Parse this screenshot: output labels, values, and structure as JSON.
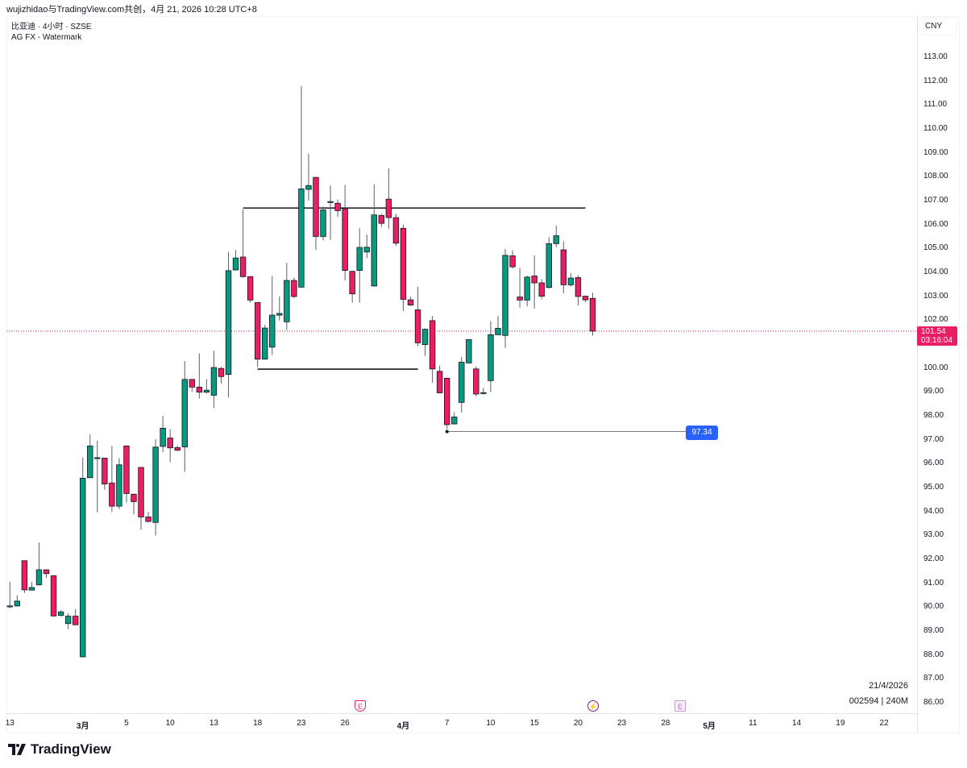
{
  "caption": "wujizhidao与TradingView.com共创，4月 21, 2026 10:28 UTC+8",
  "legend": {
    "symbol_line": "比亚迪 · 4小时 · SZSE",
    "indicator_line": "AG FX - Watermark"
  },
  "currency_button": "CNY",
  "last_price": {
    "price": "101.54",
    "countdown": "03:16:04"
  },
  "info": {
    "date": "21/4/2026",
    "symbol_interval": "002594 | 240M"
  },
  "markers": {
    "earnings_past": "E",
    "dividend": "⚡",
    "earnings_future": "E"
  },
  "logo": {
    "text": "TradingView"
  },
  "colors": {
    "up": "#089981",
    "down": "#e91e63",
    "border": "#131722",
    "last_price": "#e91e63",
    "price_line": "#2962ff"
  },
  "chart_data": {
    "type": "candlestick",
    "ylim": [
      86,
      113
    ],
    "grid": false,
    "y_ticks": [
      "113.00",
      "112.00",
      "111.00",
      "110.00",
      "109.00",
      "108.00",
      "107.00",
      "106.00",
      "105.00",
      "104.00",
      "103.00",
      "102.00",
      "100.00",
      "99.00",
      "98.00",
      "97.00",
      "96.00",
      "95.00",
      "94.00",
      "93.00",
      "92.00",
      "91.00",
      "90.00",
      "89.00",
      "88.00",
      "87.00",
      "86.00"
    ],
    "x_ticks": [
      {
        "label": "13",
        "bar": 0
      },
      {
        "label": "3月",
        "bar": 10,
        "bold": true
      },
      {
        "label": "5",
        "bar": 16
      },
      {
        "label": "10",
        "bar": 22
      },
      {
        "label": "13",
        "bar": 28
      },
      {
        "label": "18",
        "bar": 34
      },
      {
        "label": "23",
        "bar": 40
      },
      {
        "label": "26",
        "bar": 46
      },
      {
        "label": "4月",
        "bar": 54,
        "bold": true
      },
      {
        "label": "7",
        "bar": 60
      },
      {
        "label": "10",
        "bar": 66
      },
      {
        "label": "15",
        "bar": 72
      },
      {
        "label": "20",
        "bar": 78
      },
      {
        "label": "23",
        "bar": 84
      },
      {
        "label": "28",
        "bar": 90
      },
      {
        "label": "5月",
        "bar": 96,
        "bold": true
      },
      {
        "label": "11",
        "bar": 102
      },
      {
        "label": "14",
        "bar": 108
      },
      {
        "label": "19",
        "bar": 114
      },
      {
        "label": "22",
        "bar": 120
      }
    ],
    "ohlc": [
      [
        90.02,
        91.06,
        89.95,
        90.05
      ],
      [
        90.05,
        90.5,
        90.02,
        90.25
      ],
      [
        91.94,
        91.95,
        90.59,
        90.72
      ],
      [
        90.71,
        91.05,
        90.7,
        90.82
      ],
      [
        90.93,
        92.7,
        90.9,
        91.56
      ],
      [
        91.56,
        91.58,
        91.23,
        91.4
      ],
      [
        91.31,
        91.33,
        89.6,
        89.63
      ],
      [
        89.65,
        89.88,
        89.62,
        89.8
      ],
      [
        89.31,
        89.74,
        89.08,
        89.62
      ],
      [
        89.62,
        89.91,
        89.25,
        89.26
      ],
      [
        87.92,
        96.26,
        87.89,
        95.39
      ],
      [
        95.41,
        97.22,
        95.4,
        96.74
      ],
      [
        96.23,
        96.96,
        93.96,
        96.25
      ],
      [
        96.23,
        96.25,
        94.91,
        95.15
      ],
      [
        95.19,
        96.74,
        93.97,
        94.22
      ],
      [
        94.22,
        96.23,
        94.1,
        95.95
      ],
      [
        96.74,
        96.76,
        94.37,
        94.75
      ],
      [
        94.72,
        94.75,
        93.87,
        94.41
      ],
      [
        95.84,
        95.86,
        93.24,
        93.77
      ],
      [
        93.77,
        93.98,
        93.54,
        93.58
      ],
      [
        93.54,
        97.02,
        92.99,
        96.69
      ],
      [
        96.72,
        98.0,
        96.48,
        97.48
      ],
      [
        97.07,
        97.45,
        96.06,
        96.66
      ],
      [
        96.67,
        96.75,
        96.52,
        96.56
      ],
      [
        96.7,
        100.29,
        95.66,
        99.52
      ],
      [
        99.52,
        99.54,
        99.0,
        99.2
      ],
      [
        99.2,
        100.61,
        98.73,
        98.99
      ],
      [
        98.99,
        99.53,
        98.93,
        99.07
      ],
      [
        98.86,
        100.72,
        98.32,
        100.02
      ],
      [
        99.98,
        100.05,
        99.35,
        99.64
      ],
      [
        99.73,
        104.85,
        98.78,
        104.07
      ],
      [
        104.1,
        104.94,
        104.07,
        104.6
      ],
      [
        104.64,
        106.63,
        103.78,
        103.82
      ],
      [
        103.82,
        103.85,
        102.73,
        102.84
      ],
      [
        102.74,
        102.76,
        100.04,
        100.37
      ],
      [
        100.37,
        101.8,
        100.35,
        101.67
      ],
      [
        100.87,
        103.85,
        100.54,
        102.21
      ],
      [
        102.21,
        103.0,
        101.98,
        102.28
      ],
      [
        101.93,
        104.4,
        101.59,
        103.66
      ],
      [
        103.66,
        103.78,
        102.92,
        102.99
      ],
      [
        103.38,
        111.79,
        103.36,
        107.49
      ],
      [
        107.47,
        108.97,
        107.0,
        107.63
      ],
      [
        107.97,
        108.0,
        104.93,
        105.5
      ],
      [
        105.5,
        106.75,
        105.34,
        106.61
      ],
      [
        106.94,
        107.63,
        105.36,
        106.96
      ],
      [
        106.89,
        107.05,
        106.31,
        106.58
      ],
      [
        106.66,
        107.66,
        103.66,
        104.08
      ],
      [
        104.04,
        104.08,
        102.73,
        103.1
      ],
      [
        104.08,
        105.85,
        102.73,
        105.04
      ],
      [
        104.85,
        105.58,
        104.59,
        105.05
      ],
      [
        103.43,
        107.68,
        103.4,
        106.4
      ],
      [
        106.38,
        106.45,
        105.89,
        106.05
      ],
      [
        107.06,
        108.35,
        105.83,
        106.29
      ],
      [
        106.29,
        106.45,
        105.1,
        105.22
      ],
      [
        105.84,
        105.99,
        102.38,
        102.87
      ],
      [
        102.85,
        102.98,
        102.6,
        102.63
      ],
      [
        102.43,
        103.39,
        100.92,
        101.05
      ],
      [
        100.98,
        101.66,
        100.5,
        101.62
      ],
      [
        101.98,
        102.18,
        99.38,
        99.96
      ],
      [
        99.86,
        100.1,
        98.95,
        98.96
      ],
      [
        99.57,
        99.6,
        97.45,
        97.63
      ],
      [
        97.66,
        98.15,
        97.64,
        97.95
      ],
      [
        98.56,
        100.46,
        98.13,
        100.24
      ],
      [
        100.21,
        101.2,
        100.2,
        101.19
      ],
      [
        99.96,
        100.07,
        98.81,
        98.91
      ],
      [
        98.93,
        99.17,
        98.89,
        98.97
      ],
      [
        99.47,
        101.96,
        98.99,
        101.39
      ],
      [
        101.39,
        102.17,
        101.39,
        101.66
      ],
      [
        101.36,
        104.98,
        100.84,
        104.71
      ],
      [
        104.69,
        104.92,
        104.16,
        104.23
      ],
      [
        102.97,
        104.19,
        102.53,
        102.84
      ],
      [
        102.84,
        103.86,
        102.58,
        103.8
      ],
      [
        103.85,
        104.71,
        102.48,
        103.56
      ],
      [
        103.56,
        103.71,
        102.88,
        103.0
      ],
      [
        103.37,
        105.47,
        103.31,
        105.2
      ],
      [
        105.2,
        105.95,
        105.05,
        105.53
      ],
      [
        104.94,
        105.3,
        103.12,
        103.48
      ],
      [
        103.48,
        103.96,
        103.4,
        103.76
      ],
      [
        103.78,
        103.88,
        102.61,
        102.99
      ],
      [
        103.0,
        103.03,
        102.75,
        102.85
      ],
      [
        102.91,
        103.15,
        101.35,
        101.54
      ]
    ],
    "lines": [
      {
        "name": "resistance",
        "price": 106.69,
        "from_bar": 32,
        "to_bar": 79,
        "color": "#131722"
      },
      {
        "name": "support",
        "price": 99.95,
        "from_bar": 34,
        "to_bar": 56,
        "color": "#131722"
      },
      {
        "name": "price-line",
        "price": 97.34,
        "from_bar": 60,
        "to_bar": 93,
        "color": "#787b86",
        "label": "97.34"
      }
    ],
    "last_price_line": 101.54
  }
}
